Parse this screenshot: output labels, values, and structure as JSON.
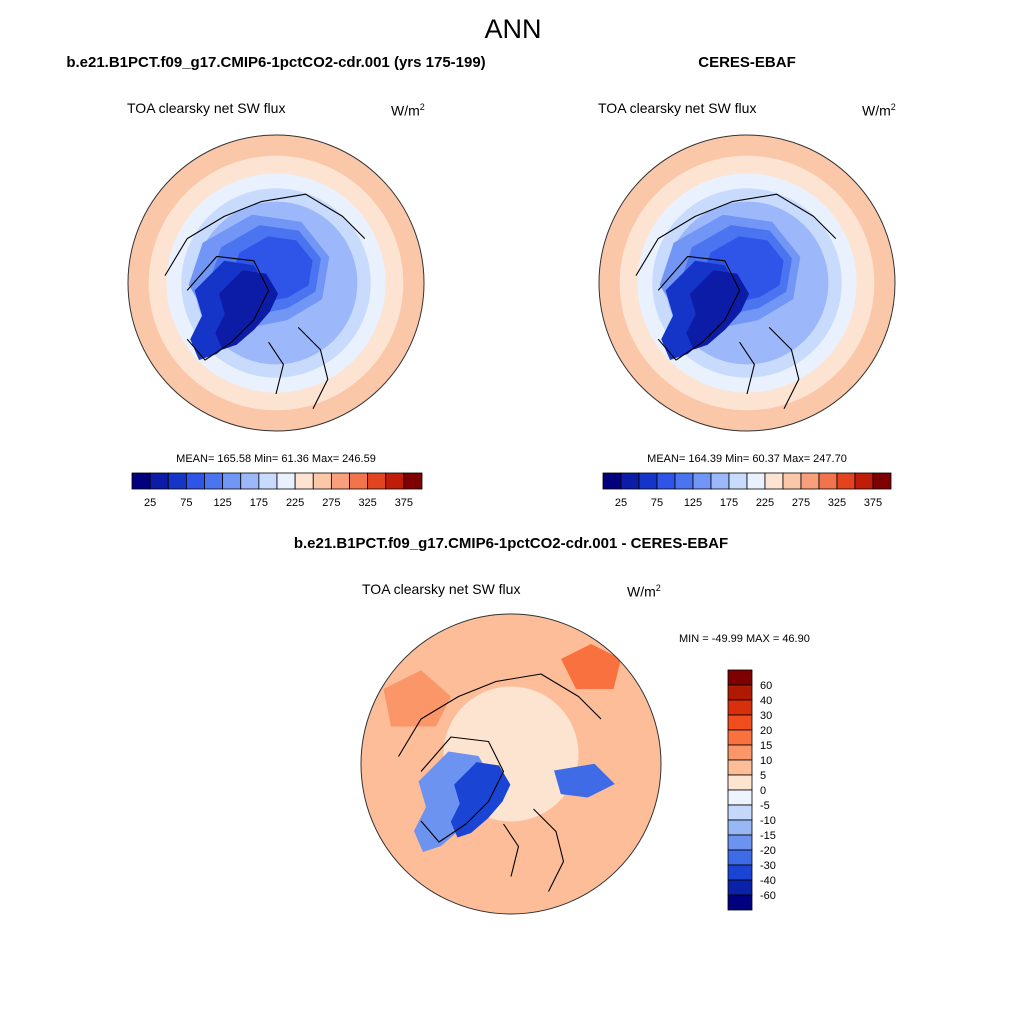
{
  "main_title": "ANN",
  "panels": [
    {
      "case_title": "b.e21.B1PCT.f09_g17.CMIP6-1pctCO2-cdr.001 (yrs 175-199)",
      "field_label": "TOA clearsky net SW flux",
      "units_base": "W/m",
      "units_exp": "2",
      "stats": "MEAN= 165.58  Min=  61.36  Max= 246.59"
    },
    {
      "case_title": "CERES-EBAF",
      "field_label": "TOA clearsky net SW flux",
      "units_base": "W/m",
      "units_exp": "2",
      "stats": "MEAN= 164.39  Min=  60.37  Max= 247.70"
    },
    {
      "case_title": "b.e21.B1PCT.f09_g17.CMIP6-1pctCO2-cdr.001 - CERES-EBAF",
      "field_label": "TOA clearsky net SW flux",
      "units_base": "W/m",
      "units_exp": "2",
      "stats": "MIN = -49.99 MAX =  46.90"
    }
  ],
  "chart_data": [
    {
      "type": "heatmap",
      "projection": "north polar stereographic",
      "title": "b.e21.B1PCT.f09_g17.CMIP6-1pctCO2-cdr.001 (yrs 175-199)",
      "field": "TOA clearsky net SW flux",
      "units": "W/m2",
      "mean": 165.58,
      "min": 61.36,
      "max": 246.59,
      "colorbar": {
        "orientation": "horizontal",
        "ticks": [
          "25",
          "75",
          "125",
          "175",
          "225",
          "275",
          "325",
          "375"
        ],
        "levels": [
          25,
          50,
          75,
          100,
          125,
          150,
          175,
          200,
          225,
          250,
          275,
          300,
          325,
          350,
          375
        ],
        "colors": [
          "#00007f",
          "#0c1ca6",
          "#1535c9",
          "#2e55e8",
          "#4b74f0",
          "#7196f5",
          "#9cb8fa",
          "#c9dbfd",
          "#e9f1fe",
          "#fde4d2",
          "#fbc7a9",
          "#f8a07c",
          "#f2744c",
          "#e3441f",
          "#c01c0a",
          "#7f0000"
        ]
      }
    },
    {
      "type": "heatmap",
      "projection": "north polar stereographic",
      "title": "CERES-EBAF",
      "field": "TOA clearsky net SW flux",
      "units": "W/m2",
      "mean": 164.39,
      "min": 60.37,
      "max": 247.7,
      "colorbar": {
        "orientation": "horizontal",
        "ticks": [
          "25",
          "75",
          "125",
          "175",
          "225",
          "275",
          "325",
          "375"
        ],
        "levels": [
          25,
          50,
          75,
          100,
          125,
          150,
          175,
          200,
          225,
          250,
          275,
          300,
          325,
          350,
          375
        ],
        "colors": [
          "#00007f",
          "#0c1ca6",
          "#1535c9",
          "#2e55e8",
          "#4b74f0",
          "#7196f5",
          "#9cb8fa",
          "#c9dbfd",
          "#e9f1fe",
          "#fde4d2",
          "#fbc7a9",
          "#f8a07c",
          "#f2744c",
          "#e3441f",
          "#c01c0a",
          "#7f0000"
        ]
      }
    },
    {
      "type": "heatmap",
      "projection": "north polar stereographic",
      "title": "b.e21.B1PCT.f09_g17.CMIP6-1pctCO2-cdr.001 - CERES-EBAF",
      "field": "TOA clearsky net SW flux",
      "units": "W/m2",
      "min": -49.99,
      "max": 46.9,
      "colorbar": {
        "orientation": "vertical",
        "ticks": [
          "60",
          "40",
          "30",
          "20",
          "15",
          "10",
          "5",
          "0",
          "-5",
          "-10",
          "-15",
          "-20",
          "-30",
          "-40",
          "-60"
        ],
        "colors": [
          "#7f0000",
          "#b01a05",
          "#d8300c",
          "#f04e1e",
          "#f9713e",
          "#fb9668",
          "#fcbd98",
          "#fde4d0",
          "#eef4ff",
          "#c4d8fb",
          "#97b7f5",
          "#6b93ef",
          "#3f6be6",
          "#1a45d4",
          "#0a22aa",
          "#00007f"
        ]
      }
    }
  ]
}
